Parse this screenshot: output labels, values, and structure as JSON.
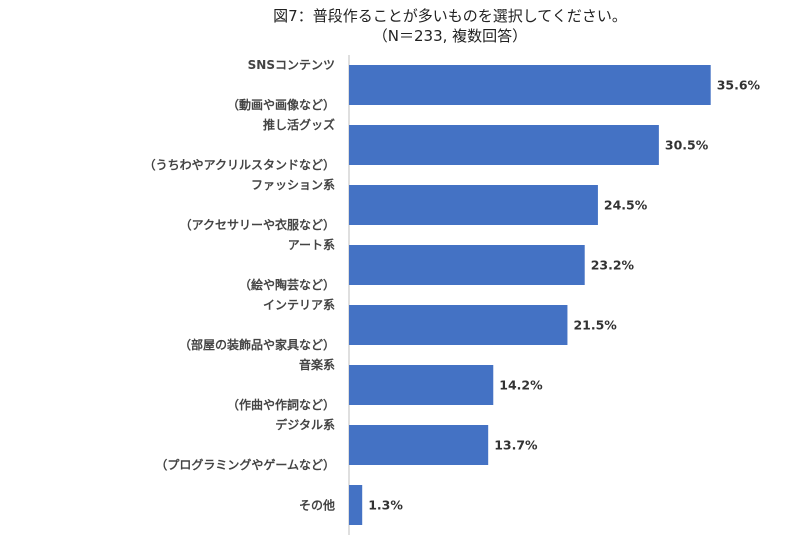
{
  "chart_data": {
    "type": "bar",
    "orientation": "horizontal",
    "title": "図7：普段作ることが多いものを選択してください。",
    "subtitle": "（N＝233, 複数回答）",
    "categories": [
      {
        "label": "SNSコンテンツ",
        "sublabel": "（動画や画像など）"
      },
      {
        "label": "推し活グッズ",
        "sublabel": "（うちわやアクリルスタンドなど）"
      },
      {
        "label": "ファッション系",
        "sublabel": "（アクセサリーや衣服など）"
      },
      {
        "label": "アート系",
        "sublabel": "（絵や陶芸など）"
      },
      {
        "label": "インテリア系",
        "sublabel": "（部屋の装飾品や家具など）"
      },
      {
        "label": "音楽系",
        "sublabel": "（作曲や作詞など）"
      },
      {
        "label": "デジタル系",
        "sublabel": "（プログラミングやゲームなど）"
      },
      {
        "label": "その他",
        "sublabel": ""
      }
    ],
    "values": [
      35.6,
      30.5,
      24.5,
      23.2,
      21.5,
      14.2,
      13.7,
      1.3
    ],
    "value_labels": [
      "35.6%",
      "30.5%",
      "24.5%",
      "23.2%",
      "21.5%",
      "14.2%",
      "13.7%",
      "1.3%"
    ],
    "xlim": [
      0,
      37.5
    ],
    "grid": false,
    "legend": "none",
    "colors": {
      "bar": "#4472C4",
      "axis": "#bfbfbf"
    }
  }
}
